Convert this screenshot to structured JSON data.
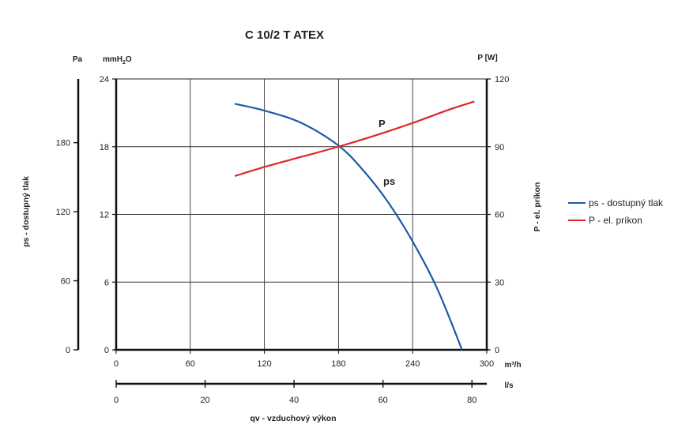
{
  "chart_data": {
    "type": "line",
    "title": "C 10/2 T ATEX",
    "x_axis_primary": {
      "unit": "m³/h",
      "ticks": [
        "0",
        "60",
        "120",
        "180",
        "240",
        "300"
      ],
      "range": [
        0,
        300
      ]
    },
    "x_axis_secondary": {
      "unit": "l/s",
      "ticks": [
        "0",
        "20",
        "40",
        "60",
        "80"
      ],
      "tick_values": [
        0,
        20,
        40,
        60,
        80
      ],
      "range": [
        0,
        83.33
      ],
      "label": "qv - vzduchový výkon"
    },
    "y_axis_left_pa": {
      "unit": "Pa",
      "ticks": [
        "0",
        "60",
        "120",
        "180"
      ],
      "tick_values": [
        0,
        60,
        120,
        180
      ],
      "label": "ps - dostupný tlak"
    },
    "y_axis_left_mmh2o": {
      "unit_main": "mmH",
      "unit_sub": "2",
      "unit_end": "O",
      "ticks": [
        "0",
        "6",
        "12",
        "18",
        "24"
      ],
      "range": [
        0,
        24
      ]
    },
    "y_axis_right": {
      "unit": "P [W]",
      "ticks": [
        "0",
        "30",
        "60",
        "90",
        "120"
      ],
      "range": [
        0,
        120
      ],
      "label": "P - el. príkon"
    },
    "grid": true,
    "legend_position": "right",
    "series": [
      {
        "name": "ps - dostupný tlak",
        "label": "ps",
        "axis": "mmH2O",
        "color": "#1f5aa6",
        "x": [
          96,
          120,
          150,
          180,
          200,
          220,
          240,
          260,
          280
        ],
        "y": [
          21.8,
          21.2,
          20.1,
          18.1,
          15.9,
          13.1,
          9.6,
          5.4,
          0
        ]
      },
      {
        "name": "P - el. príkon",
        "label": "P",
        "axis": "W",
        "color": "#e0262b",
        "x": [
          96,
          120,
          150,
          180,
          210,
          240,
          270,
          290
        ],
        "y": [
          77,
          81,
          85.5,
          90,
          95,
          100.5,
          106.5,
          110
        ]
      }
    ]
  }
}
